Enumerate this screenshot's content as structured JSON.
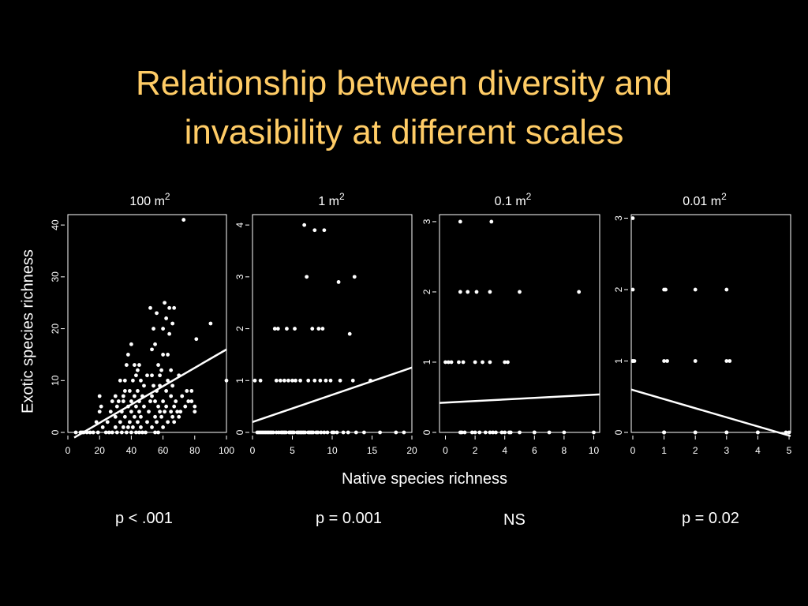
{
  "slide": {
    "title_line_1": "Relationship between diversity and",
    "title_line_2": "invasibility at different scales",
    "title_color": "#ffcc66",
    "background": "#000000",
    "foreground": "#ffffff"
  },
  "shared": {
    "ylabel": "Exotic species richness",
    "xlabel": "Native species richness"
  },
  "chart_data": [
    {
      "type": "scatter",
      "title": "100 m",
      "title_superscript": "2",
      "stat": "p < .001",
      "xlim": [
        0,
        100
      ],
      "ylim": [
        0,
        42
      ],
      "xticks": [
        0,
        20,
        40,
        60,
        80,
        100
      ],
      "yticks": [
        0,
        10,
        20,
        30,
        40
      ],
      "fit_line": {
        "x": [
          4,
          100
        ],
        "y": [
          -1,
          16
        ]
      },
      "points": [
        [
          5,
          0
        ],
        [
          8,
          0
        ],
        [
          9,
          0
        ],
        [
          10,
          0
        ],
        [
          12,
          0
        ],
        [
          14,
          0
        ],
        [
          16,
          0
        ],
        [
          18,
          2
        ],
        [
          19,
          0
        ],
        [
          20,
          4
        ],
        [
          20,
          7
        ],
        [
          21,
          5
        ],
        [
          22,
          1
        ],
        [
          24,
          0
        ],
        [
          25,
          2
        ],
        [
          26,
          0
        ],
        [
          27,
          4
        ],
        [
          28,
          0
        ],
        [
          28,
          6
        ],
        [
          30,
          1
        ],
        [
          30,
          3
        ],
        [
          30,
          7
        ],
        [
          31,
          0
        ],
        [
          31,
          5
        ],
        [
          32,
          6
        ],
        [
          33,
          2
        ],
        [
          33,
          10
        ],
        [
          34,
          0
        ],
        [
          34,
          4
        ],
        [
          35,
          1
        ],
        [
          35,
          6
        ],
        [
          35,
          7
        ],
        [
          36,
          3
        ],
        [
          36,
          8
        ],
        [
          36,
          10
        ],
        [
          37,
          0
        ],
        [
          37,
          13
        ],
        [
          38,
          1
        ],
        [
          38,
          5
        ],
        [
          38,
          15
        ],
        [
          39,
          2
        ],
        [
          39,
          8
        ],
        [
          40,
          0
        ],
        [
          40,
          4
        ],
        [
          40,
          6
        ],
        [
          40,
          17
        ],
        [
          41,
          1
        ],
        [
          41,
          10
        ],
        [
          42,
          3
        ],
        [
          42,
          7
        ],
        [
          42,
          13
        ],
        [
          43,
          0
        ],
        [
          43,
          5
        ],
        [
          43,
          11
        ],
        [
          44,
          2
        ],
        [
          44,
          8
        ],
        [
          44,
          12
        ],
        [
          45,
          0
        ],
        [
          45,
          4
        ],
        [
          45,
          6
        ],
        [
          45,
          13
        ],
        [
          46,
          1
        ],
        [
          46,
          3
        ],
        [
          46,
          10
        ],
        [
          47,
          0
        ],
        [
          47,
          7
        ],
        [
          48,
          5
        ],
        [
          48,
          9
        ],
        [
          49,
          0
        ],
        [
          50,
          2
        ],
        [
          50,
          11
        ],
        [
          51,
          4
        ],
        [
          52,
          6
        ],
        [
          52,
          24
        ],
        [
          53,
          1
        ],
        [
          53,
          7
        ],
        [
          53,
          11
        ],
        [
          53,
          16
        ],
        [
          54,
          9
        ],
        [
          54,
          20
        ],
        [
          55,
          0
        ],
        [
          55,
          3
        ],
        [
          55,
          6
        ],
        [
          55,
          17
        ],
        [
          56,
          2
        ],
        [
          56,
          8
        ],
        [
          56,
          23
        ],
        [
          57,
          0
        ],
        [
          57,
          5
        ],
        [
          57,
          13
        ],
        [
          58,
          4
        ],
        [
          58,
          9
        ],
        [
          58,
          11
        ],
        [
          59,
          3
        ],
        [
          59,
          12
        ],
        [
          60,
          1
        ],
        [
          60,
          6
        ],
        [
          60,
          15
        ],
        [
          60,
          20
        ],
        [
          61,
          4
        ],
        [
          61,
          25
        ],
        [
          62,
          5
        ],
        [
          62,
          8
        ],
        [
          62,
          22
        ],
        [
          63,
          2
        ],
        [
          63,
          10
        ],
        [
          63,
          15
        ],
        [
          64,
          19
        ],
        [
          64,
          24
        ],
        [
          65,
          4
        ],
        [
          65,
          7
        ],
        [
          65,
          12
        ],
        [
          66,
          3
        ],
        [
          66,
          9
        ],
        [
          66,
          21
        ],
        [
          67,
          2
        ],
        [
          67,
          5
        ],
        [
          67,
          24
        ],
        [
          68,
          6
        ],
        [
          69,
          4
        ],
        [
          70,
          3
        ],
        [
          70,
          11
        ],
        [
          71,
          4
        ],
        [
          72,
          7
        ],
        [
          73,
          41
        ],
        [
          74,
          5
        ],
        [
          75,
          8
        ],
        [
          76,
          6
        ],
        [
          78,
          6
        ],
        [
          78,
          8
        ],
        [
          80,
          4
        ],
        [
          80,
          5
        ],
        [
          81,
          18
        ],
        [
          90,
          21
        ],
        [
          100,
          10
        ]
      ]
    },
    {
      "type": "scatter",
      "title": "1 m",
      "title_superscript": "2",
      "stat": "p = 0.001",
      "xlim": [
        0,
        20
      ],
      "ylim": [
        0,
        4.2
      ],
      "xticks": [
        0,
        5,
        10,
        15,
        20
      ],
      "yticks": [
        0,
        1,
        2,
        3,
        4
      ],
      "fit_line": {
        "x": [
          0,
          20
        ],
        "y": [
          0.2,
          1.25
        ]
      },
      "points": [
        [
          0.3,
          1
        ],
        [
          0.6,
          0
        ],
        [
          0.8,
          0
        ],
        [
          1,
          0
        ],
        [
          1,
          1
        ],
        [
          1.2,
          0
        ],
        [
          1.4,
          0
        ],
        [
          1.6,
          0
        ],
        [
          1.8,
          0
        ],
        [
          2,
          0
        ],
        [
          2.2,
          0
        ],
        [
          2.4,
          0
        ],
        [
          2.6,
          0
        ],
        [
          2.8,
          2
        ],
        [
          3,
          0
        ],
        [
          3,
          1
        ],
        [
          3.2,
          2
        ],
        [
          3.3,
          0
        ],
        [
          3.5,
          1
        ],
        [
          3.6,
          0
        ],
        [
          3.8,
          0
        ],
        [
          4,
          0
        ],
        [
          4,
          1
        ],
        [
          4.2,
          0
        ],
        [
          4.3,
          2
        ],
        [
          4.5,
          1
        ],
        [
          4.6,
          0
        ],
        [
          4.8,
          0
        ],
        [
          5,
          0
        ],
        [
          5,
          1
        ],
        [
          5.2,
          0
        ],
        [
          5.3,
          2
        ],
        [
          5.4,
          1
        ],
        [
          5.6,
          0
        ],
        [
          5.8,
          0
        ],
        [
          6,
          0
        ],
        [
          6,
          1
        ],
        [
          6.2,
          0
        ],
        [
          6.4,
          0
        ],
        [
          6.5,
          4
        ],
        [
          6.6,
          0
        ],
        [
          6.8,
          3
        ],
        [
          7,
          0
        ],
        [
          7,
          1
        ],
        [
          7.2,
          0
        ],
        [
          7.4,
          0
        ],
        [
          7.5,
          2
        ],
        [
          7.6,
          0
        ],
        [
          7.8,
          3.9
        ],
        [
          7.8,
          1
        ],
        [
          8,
          0
        ],
        [
          8.2,
          0
        ],
        [
          8.3,
          2
        ],
        [
          8.5,
          1
        ],
        [
          8.6,
          0
        ],
        [
          8.8,
          2
        ],
        [
          9,
          3.9
        ],
        [
          9,
          0
        ],
        [
          9.2,
          1
        ],
        [
          9.4,
          0
        ],
        [
          9.8,
          1
        ],
        [
          10,
          0
        ],
        [
          10.2,
          0
        ],
        [
          10.6,
          0
        ],
        [
          10.8,
          2.9
        ],
        [
          11,
          1
        ],
        [
          11.4,
          0
        ],
        [
          12,
          0
        ],
        [
          12.2,
          1.9
        ],
        [
          12.6,
          1
        ],
        [
          12.8,
          3
        ],
        [
          13,
          0
        ],
        [
          14,
          0
        ],
        [
          14.8,
          1
        ],
        [
          16,
          0
        ],
        [
          18,
          0
        ],
        [
          19,
          0
        ]
      ]
    },
    {
      "type": "scatter",
      "title": "0.1 m",
      "title_superscript": "2",
      "stat": "NS",
      "xlim": [
        -0.4,
        10.4
      ],
      "ylim": [
        0,
        3.1
      ],
      "xticks": [
        0,
        2,
        4,
        6,
        8,
        10
      ],
      "yticks": [
        0,
        1,
        2,
        3
      ],
      "fit_line": {
        "x": [
          -0.4,
          10.4
        ],
        "y": [
          0.42,
          0.54
        ]
      },
      "points": [
        [
          0,
          1
        ],
        [
          0.2,
          1
        ],
        [
          0.4,
          1
        ],
        [
          0.9,
          1
        ],
        [
          1,
          0
        ],
        [
          1,
          2
        ],
        [
          1,
          3
        ],
        [
          1.1,
          0
        ],
        [
          1.2,
          1
        ],
        [
          1.3,
          0
        ],
        [
          1.5,
          2
        ],
        [
          1.8,
          0
        ],
        [
          2,
          0
        ],
        [
          2,
          1
        ],
        [
          2.1,
          2
        ],
        [
          2.3,
          0
        ],
        [
          2.5,
          1
        ],
        [
          2.7,
          0
        ],
        [
          3,
          0
        ],
        [
          3,
          1
        ],
        [
          3,
          2
        ],
        [
          3.1,
          3
        ],
        [
          3.2,
          0
        ],
        [
          3.4,
          0
        ],
        [
          3.8,
          0
        ],
        [
          4,
          1
        ],
        [
          4,
          0
        ],
        [
          4.2,
          1
        ],
        [
          4.3,
          0
        ],
        [
          4.4,
          0
        ],
        [
          5,
          2
        ],
        [
          5,
          0
        ],
        [
          6,
          0
        ],
        [
          6,
          0
        ],
        [
          7,
          0
        ],
        [
          8,
          0
        ],
        [
          9,
          2
        ],
        [
          10,
          0
        ]
      ]
    },
    {
      "type": "scatter",
      "title": "0.01 m",
      "title_superscript": "2",
      "stat": "p = 0.02",
      "xlim": [
        -0.05,
        5.05
      ],
      "ylim": [
        0,
        3.05
      ],
      "xticks": [
        0,
        1,
        2,
        3,
        4,
        5
      ],
      "yticks": [
        0,
        1,
        2,
        3
      ],
      "fit_line": {
        "x": [
          -0.05,
          5.05
        ],
        "y": [
          0.6,
          -0.05
        ]
      },
      "points": [
        [
          0,
          3
        ],
        [
          0,
          1
        ],
        [
          0,
          1
        ],
        [
          0,
          2
        ],
        [
          0.05,
          1
        ],
        [
          1,
          2
        ],
        [
          1,
          1
        ],
        [
          1,
          0
        ],
        [
          1,
          0
        ],
        [
          1,
          0
        ],
        [
          1,
          0
        ],
        [
          1.05,
          2
        ],
        [
          1.1,
          1
        ],
        [
          2,
          2
        ],
        [
          2,
          1
        ],
        [
          2,
          0
        ],
        [
          2,
          0
        ],
        [
          3,
          2
        ],
        [
          3,
          1
        ],
        [
          3,
          0
        ],
        [
          3,
          0
        ],
        [
          3.1,
          1
        ],
        [
          4,
          0
        ],
        [
          4,
          0
        ],
        [
          4.9,
          0
        ],
        [
          5,
          0
        ]
      ]
    }
  ]
}
